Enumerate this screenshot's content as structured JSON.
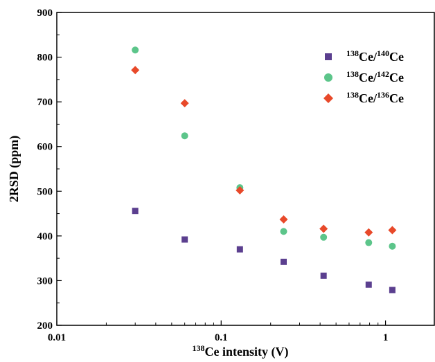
{
  "chart_data": {
    "type": "scatter",
    "title": "",
    "xlabel": {
      "sup": "138",
      "text": "Ce intensity (V)"
    },
    "ylabel": "2RSD (ppm)",
    "xscale": "log",
    "xlim": [
      0.01,
      2
    ],
    "ylim": [
      200,
      900
    ],
    "xticks": [
      {
        "value": 0.01,
        "label": "0.01"
      },
      {
        "value": 0.1,
        "label": "0.1"
      },
      {
        "value": 1,
        "label": "1"
      }
    ],
    "yticks": [
      200,
      300,
      400,
      500,
      600,
      700,
      800,
      900
    ],
    "grid": false,
    "legend_position": "top-right",
    "x": [
      0.03,
      0.06,
      0.13,
      0.24,
      0.42,
      0.79,
      1.1
    ],
    "series": [
      {
        "name": "138Ce/140Ce",
        "label_parts": {
          "sup1": "138",
          "t1": "Ce/",
          "sup2": "140",
          "t2": "Ce"
        },
        "marker": "square",
        "color": "#5b3f8f",
        "values": [
          456,
          392,
          370,
          342,
          311,
          291,
          279
        ]
      },
      {
        "name": "138Ce/142Ce",
        "label_parts": {
          "sup1": "138",
          "t1": "Ce/",
          "sup2": "142",
          "t2": "Ce"
        },
        "marker": "circle",
        "color": "#5cc58a",
        "values": [
          816,
          624,
          508,
          410,
          397,
          385,
          377
        ]
      },
      {
        "name": "138Ce/136Ce",
        "label_parts": {
          "sup1": "138",
          "t1": "Ce/",
          "sup2": "136",
          "t2": "Ce"
        },
        "marker": "diamond",
        "color": "#e8492a",
        "values": [
          771,
          697,
          502,
          437,
          416,
          408,
          413
        ]
      }
    ]
  }
}
